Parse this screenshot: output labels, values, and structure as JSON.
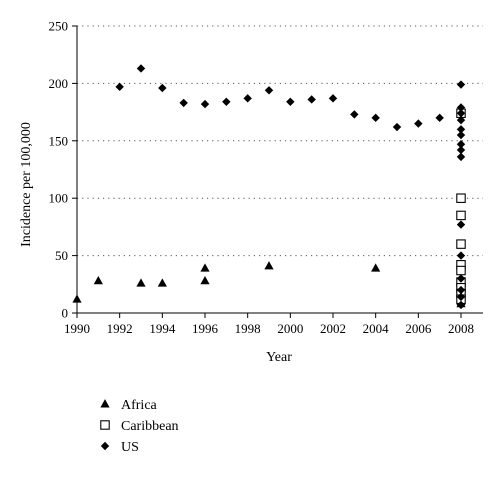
{
  "chart_data": {
    "type": "scatter",
    "title": "",
    "xlabel": "Year",
    "ylabel": "Incidence per 100,000",
    "xlim": [
      1990,
      2008
    ],
    "ylim": [
      0,
      250
    ],
    "xticks": [
      1990,
      1992,
      1994,
      1996,
      1998,
      2000,
      2002,
      2004,
      2006,
      2008
    ],
    "xtick_labels": [
      "1990",
      "1992",
      "1994",
      "1996",
      "1998",
      "2000",
      "2002",
      "2004",
      "2006",
      "2008"
    ],
    "yticks": [
      0,
      50,
      100,
      150,
      200,
      250
    ],
    "ytick_labels": [
      "0",
      "50",
      "100",
      "150",
      "200",
      "250"
    ],
    "grid": "horizontal dotted",
    "legend_position": "bottom-left, below plot",
    "series": [
      {
        "name": "Africa",
        "marker": "triangle",
        "color": "#000000",
        "points": [
          [
            1990,
            12
          ],
          [
            1991,
            28
          ],
          [
            1993,
            26
          ],
          [
            1994,
            26
          ],
          [
            1996,
            39
          ],
          [
            1996,
            28
          ],
          [
            1999,
            41
          ],
          [
            2004,
            39
          ],
          [
            2008,
            60
          ],
          [
            2008,
            30
          ],
          [
            2008,
            25
          ],
          [
            2008,
            20
          ],
          [
            2008,
            16
          ],
          [
            2008,
            13
          ],
          [
            2008,
            10
          ],
          [
            2008,
            8
          ]
        ]
      },
      {
        "name": "Caribbean",
        "marker": "square-open",
        "color": "#000000",
        "points": [
          [
            2008,
            174
          ],
          [
            2008,
            100
          ],
          [
            2008,
            85
          ],
          [
            2008,
            60
          ],
          [
            2008,
            42
          ],
          [
            2008,
            37
          ],
          [
            2008,
            27
          ],
          [
            2008,
            22
          ],
          [
            2008,
            17
          ],
          [
            2008,
            12
          ]
        ]
      },
      {
        "name": "US",
        "marker": "diamond",
        "color": "#000000",
        "points": [
          [
            1992,
            197
          ],
          [
            1993,
            213
          ],
          [
            1994,
            196
          ],
          [
            1995,
            183
          ],
          [
            1996,
            182
          ],
          [
            1997,
            184
          ],
          [
            1998,
            187
          ],
          [
            1999,
            194
          ],
          [
            2000,
            184
          ],
          [
            2001,
            186
          ],
          [
            2002,
            187
          ],
          [
            2003,
            173
          ],
          [
            2004,
            170
          ],
          [
            2005,
            162
          ],
          [
            2006,
            165
          ],
          [
            2007,
            170
          ],
          [
            2008,
            199
          ],
          [
            2008,
            179
          ],
          [
            2008,
            174
          ],
          [
            2008,
            168
          ],
          [
            2008,
            160
          ],
          [
            2008,
            155
          ],
          [
            2008,
            147
          ],
          [
            2008,
            142
          ],
          [
            2008,
            136
          ],
          [
            2008,
            77
          ],
          [
            2008,
            50
          ],
          [
            2008,
            30
          ],
          [
            2008,
            20
          ],
          [
            2008,
            14
          ],
          [
            2008,
            7
          ]
        ]
      }
    ]
  }
}
